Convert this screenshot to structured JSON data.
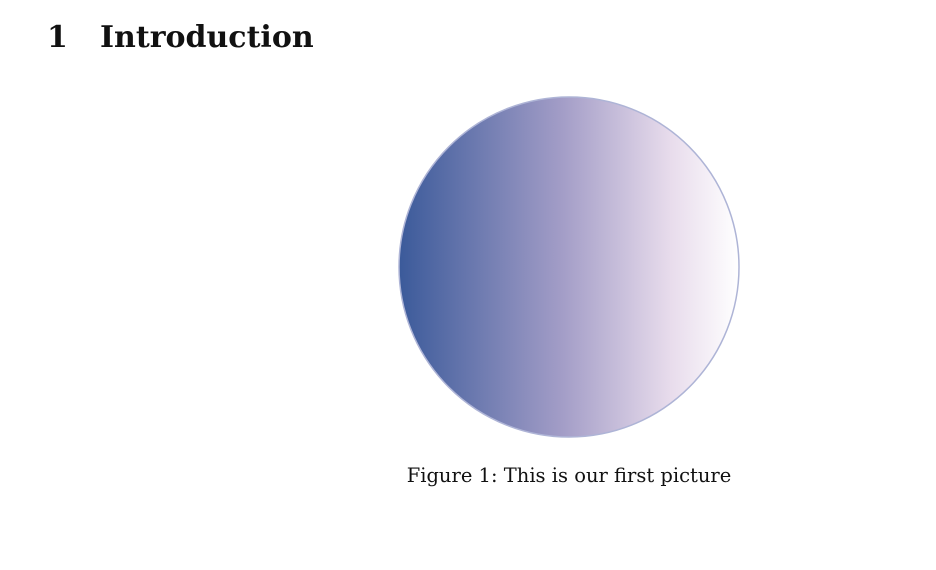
{
  "section": {
    "number": "1",
    "title": "Introduction"
  },
  "figure": {
    "caption_label": "Figure 1:",
    "caption_text": "This is our first picture",
    "shape": "circle",
    "fill_colors": [
      "#3b5a9a",
      "#a39dc7",
      "#e8dcec",
      "#ffffff"
    ],
    "outline_color": "#aeb4d6"
  }
}
